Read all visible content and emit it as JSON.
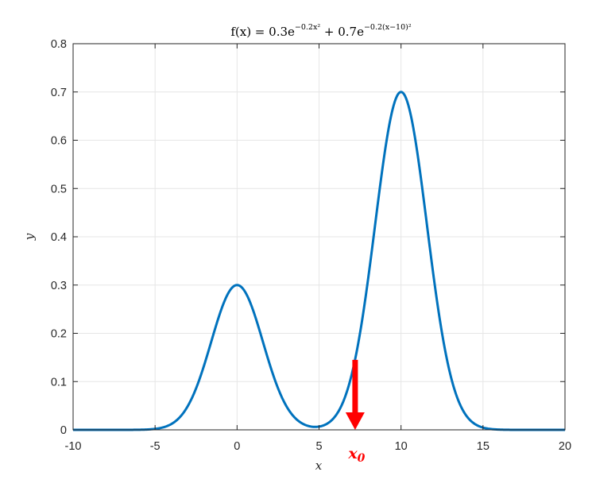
{
  "chart_data": {
    "type": "line",
    "title": {
      "prefix": "f(x) = 0.3e",
      "exp1": "−0.2x²",
      "middle": " + 0.7e",
      "exp2": "−0.2(x−10)²"
    },
    "xlabel": "x",
    "ylabel": "y",
    "xlim": [
      -10,
      20
    ],
    "ylim": [
      0,
      0.8
    ],
    "xticks": [
      -10,
      -5,
      0,
      5,
      10,
      15,
      20
    ],
    "xtick_labels": [
      "-10",
      "-5",
      "0",
      "5",
      "10",
      "15",
      "20"
    ],
    "yticks": [
      0,
      0.1,
      0.2,
      0.3,
      0.4,
      0.5,
      0.6,
      0.7,
      0.8
    ],
    "ytick_labels": [
      "0",
      "0.1",
      "0.2",
      "0.3",
      "0.4",
      "0.5",
      "0.6",
      "0.7",
      "0.8"
    ],
    "grid": true,
    "series": [
      {
        "function": "0.3*exp(-0.2*x^2) + 0.7*exp(-0.2*(x-10)^2)",
        "color": "#0072BD",
        "x": [
          -10,
          -8,
          -6,
          -5,
          -4,
          -3,
          -2,
          -1,
          0,
          1,
          2,
          3,
          4,
          5,
          6,
          7,
          8,
          9,
          10,
          11,
          12,
          13,
          14,
          15,
          16,
          18,
          20
        ],
        "y": [
          0,
          0,
          0.0002,
          0.002,
          0.012,
          0.05,
          0.135,
          0.246,
          0.3,
          0.246,
          0.135,
          0.05,
          0.013,
          0.007,
          0.029,
          0.117,
          0.315,
          0.573,
          0.7,
          0.573,
          0.315,
          0.117,
          0.029,
          0.005,
          0.001,
          0,
          0
        ]
      }
    ],
    "annotation": {
      "label_main": "x",
      "label_sub": "0",
      "x": 7.2,
      "y_arrow_top": 0.145,
      "y_arrow_tip": 0,
      "color": "#ff0000"
    }
  }
}
